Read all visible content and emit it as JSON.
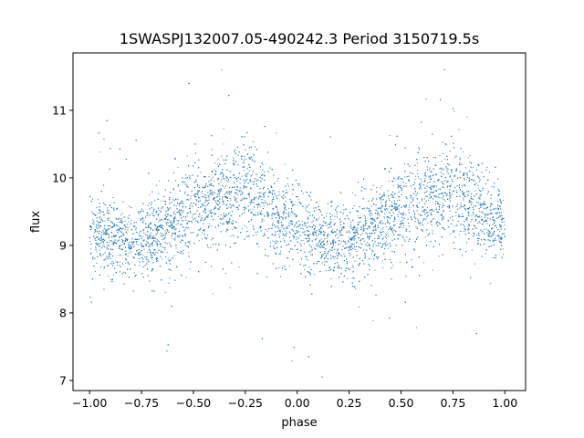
{
  "chart_data": {
    "type": "scatter",
    "title": "1SWASPJ132007.05-490242.3 Period 3150719.5s",
    "xlabel": "phase",
    "ylabel": "flux",
    "xlim": [
      -1.08,
      1.1
    ],
    "ylim": [
      6.85,
      11.85
    ],
    "xticks": [
      -1.0,
      -0.75,
      -0.5,
      -0.25,
      0.0,
      0.25,
      0.5,
      0.75,
      1.0
    ],
    "xtick_labels": [
      "−1.00",
      "−0.75",
      "−0.50",
      "−0.25",
      "0.00",
      "0.25",
      "0.50",
      "0.75",
      "1.00"
    ],
    "yticks": [
      7,
      8,
      9,
      10,
      11
    ],
    "ytick_labels": [
      "7",
      "8",
      "9",
      "10",
      "11"
    ],
    "grid": false,
    "marker_color": "#1f77b4",
    "series": [
      {
        "phase_profile": {
          "x": [
            -1.0,
            -0.9,
            -0.8,
            -0.7,
            -0.6,
            -0.5,
            -0.4,
            -0.3,
            -0.25,
            -0.2,
            -0.1,
            0.0,
            0.1,
            0.2,
            0.3,
            0.4,
            0.5,
            0.6,
            0.7,
            0.75,
            0.8,
            0.9,
            1.0
          ],
          "flux_mean": [
            9.25,
            9.1,
            9.05,
            9.15,
            9.3,
            9.55,
            9.65,
            9.75,
            9.85,
            9.7,
            9.45,
            9.25,
            9.1,
            9.05,
            9.15,
            9.3,
            9.55,
            9.65,
            9.75,
            9.85,
            9.7,
            9.45,
            9.25
          ],
          "flux_min": 7.05,
          "flux_max": 11.6
        }
      }
    ]
  }
}
